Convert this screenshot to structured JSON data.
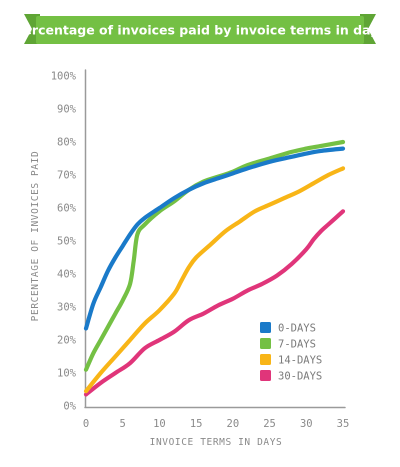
{
  "chart_data": {
    "type": "line",
    "title": "Percentage of invoices paid by invoice terms in days",
    "xlabel": "INVOICE TERMS IN DAYS",
    "ylabel": "PERCENTAGE OF INVOICES PAID",
    "xlim": [
      0,
      35
    ],
    "ylim": [
      0,
      100
    ],
    "x_ticks": [
      0,
      5,
      10,
      15,
      20,
      25,
      30,
      35
    ],
    "y_ticks": [
      0,
      10,
      20,
      30,
      40,
      50,
      60,
      70,
      80,
      90,
      100
    ],
    "y_tick_suffix": "%",
    "grid": false,
    "legend_position": "bottom-right",
    "title_banner_color": "#74c044",
    "series": [
      {
        "name": "0-DAYS",
        "color": "#1a7ac9",
        "points": [
          [
            0,
            23.5
          ],
          [
            1,
            31
          ],
          [
            2,
            36
          ],
          [
            3,
            41
          ],
          [
            4,
            45
          ],
          [
            5,
            48.5
          ],
          [
            6,
            52
          ],
          [
            7,
            55
          ],
          [
            8,
            57
          ],
          [
            10,
            60
          ],
          [
            12,
            63
          ],
          [
            14,
            65.5
          ],
          [
            16,
            67.5
          ],
          [
            18,
            69
          ],
          [
            20,
            70.5
          ],
          [
            22,
            72
          ],
          [
            25,
            74
          ],
          [
            28,
            75.5
          ],
          [
            30,
            76.5
          ],
          [
            32,
            77.3
          ],
          [
            35,
            78
          ]
        ]
      },
      {
        "name": "7-DAYS",
        "color": "#74c044",
        "points": [
          [
            0,
            11
          ],
          [
            1,
            16
          ],
          [
            2,
            20
          ],
          [
            3,
            24
          ],
          [
            4,
            28
          ],
          [
            5,
            32
          ],
          [
            6,
            37
          ],
          [
            6.5,
            44
          ],
          [
            7,
            52
          ],
          [
            8,
            55
          ],
          [
            10,
            59
          ],
          [
            12,
            62
          ],
          [
            14,
            65.5
          ],
          [
            16,
            68
          ],
          [
            18,
            69.5
          ],
          [
            20,
            71
          ],
          [
            22,
            73
          ],
          [
            25,
            75
          ],
          [
            28,
            77
          ],
          [
            30,
            78
          ],
          [
            32,
            78.8
          ],
          [
            35,
            80
          ]
        ]
      },
      {
        "name": "14-DAYS",
        "color": "#f8b517",
        "points": [
          [
            0,
            4.5
          ],
          [
            2,
            10
          ],
          [
            4,
            15
          ],
          [
            6,
            20
          ],
          [
            8,
            25
          ],
          [
            10,
            29
          ],
          [
            12,
            34
          ],
          [
            13,
            38
          ],
          [
            14,
            42
          ],
          [
            15,
            45
          ],
          [
            17,
            49
          ],
          [
            19,
            53
          ],
          [
            21,
            56
          ],
          [
            23,
            59
          ],
          [
            25,
            61
          ],
          [
            27,
            63
          ],
          [
            29,
            65
          ],
          [
            31,
            67.5
          ],
          [
            33,
            70
          ],
          [
            35,
            72
          ]
        ]
      },
      {
        "name": "30-DAYS",
        "color": "#e0357a",
        "points": [
          [
            0,
            3.5
          ],
          [
            2,
            7
          ],
          [
            4,
            10
          ],
          [
            6,
            13
          ],
          [
            8,
            17.5
          ],
          [
            10,
            20
          ],
          [
            12,
            22.5
          ],
          [
            14,
            26
          ],
          [
            16,
            28
          ],
          [
            18,
            30.5
          ],
          [
            20,
            32.5
          ],
          [
            22,
            35
          ],
          [
            24,
            37
          ],
          [
            26,
            39.5
          ],
          [
            28,
            43
          ],
          [
            30,
            47.5
          ],
          [
            31,
            50.5
          ],
          [
            32,
            53
          ],
          [
            33,
            55
          ],
          [
            34,
            57
          ],
          [
            35,
            59
          ]
        ]
      }
    ]
  }
}
